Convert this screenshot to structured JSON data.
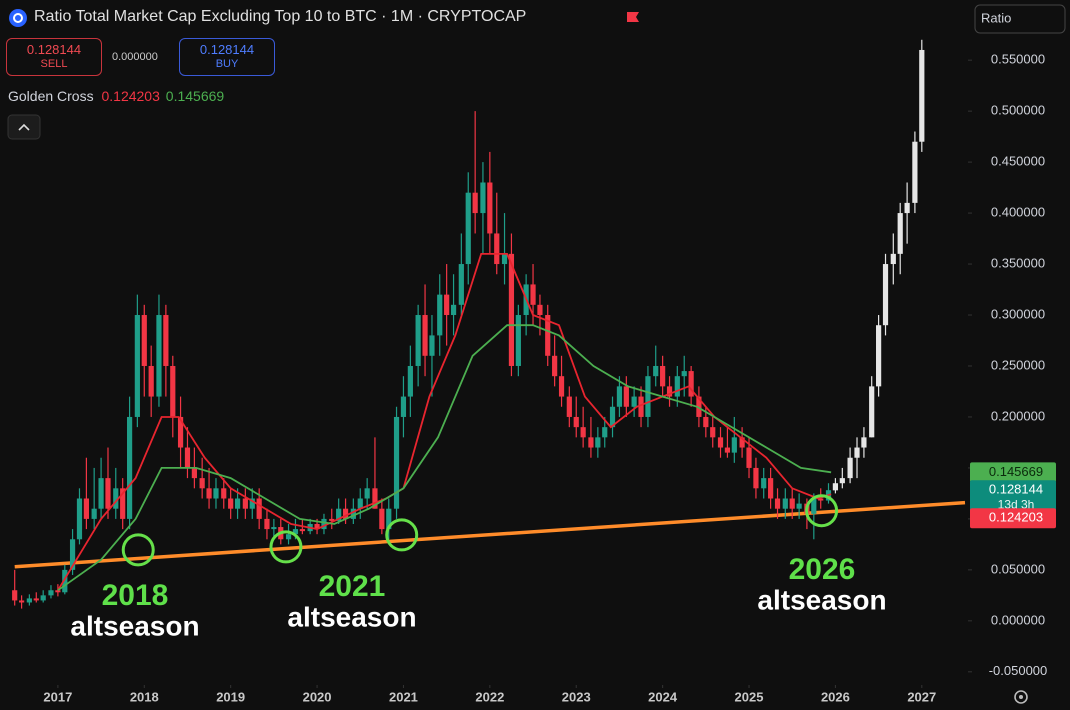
{
  "chart_data": {
    "type": "candlestick",
    "title": "Ratio Total Market Cap Excluding Top 10 to BTC · 1M · CRYPTOCAP",
    "sell": 0.128144,
    "sell_label": "SELL",
    "spread": {
      "value": 0,
      "label": "0.000000"
    },
    "buy": 0.128144,
    "buy_label": "BUY",
    "scale_label": "Ratio",
    "indicator": {
      "name": "Golden Cross",
      "fast": 0.124203,
      "slow": 0.145669
    },
    "price_badge": {
      "value": 0.128144,
      "countdown": "13d 3h"
    },
    "up_color": "#1f9e89",
    "down_color": "#f23645",
    "xlim": [
      2016.33,
      2027.5
    ],
    "xticks": [
      2017,
      2018,
      2019,
      2020,
      2021,
      2022,
      2023,
      2024,
      2025,
      2026,
      2027
    ],
    "ylim": [
      -0.06,
      0.61
    ],
    "yticks": [
      {
        "value": -0.05,
        "label": "-0.050000"
      },
      {
        "value": 0,
        "label": "0.000000"
      },
      {
        "value": 0.05,
        "label": "0.050000"
      },
      {
        "value": 0.1,
        "label": "0.100000"
      },
      {
        "value": 0.15,
        "label": "0.150000"
      },
      {
        "value": 0.2,
        "label": "0.200000"
      },
      {
        "value": 0.25,
        "label": "0.250000"
      },
      {
        "value": 0.3,
        "label": "0.300000"
      },
      {
        "value": 0.35,
        "label": "0.350000"
      },
      {
        "value": 0.4,
        "label": "0.400000"
      },
      {
        "value": 0.45,
        "label": "0.450000"
      },
      {
        "value": 0.5,
        "label": "0.500000"
      },
      {
        "value": 0.55,
        "label": "0.550000"
      }
    ],
    "candles": [
      [
        2016.5,
        0.03,
        0.05,
        0.015,
        0.02
      ],
      [
        2016.58,
        0.02,
        0.025,
        0.012,
        0.018
      ],
      [
        2016.67,
        0.018,
        0.026,
        0.015,
        0.022
      ],
      [
        2016.75,
        0.022,
        0.028,
        0.018,
        0.02
      ],
      [
        2016.83,
        0.02,
        0.03,
        0.018,
        0.025
      ],
      [
        2016.92,
        0.025,
        0.035,
        0.022,
        0.03
      ],
      [
        2017.0,
        0.03,
        0.036,
        0.024,
        0.028
      ],
      [
        2017.08,
        0.028,
        0.055,
        0.026,
        0.05
      ],
      [
        2017.17,
        0.05,
        0.09,
        0.045,
        0.08
      ],
      [
        2017.25,
        0.08,
        0.13,
        0.075,
        0.12
      ],
      [
        2017.33,
        0.12,
        0.16,
        0.09,
        0.1
      ],
      [
        2017.42,
        0.1,
        0.15,
        0.09,
        0.11
      ],
      [
        2017.5,
        0.11,
        0.16,
        0.1,
        0.14
      ],
      [
        2017.58,
        0.14,
        0.17,
        0.1,
        0.11
      ],
      [
        2017.67,
        0.11,
        0.15,
        0.1,
        0.13
      ],
      [
        2017.75,
        0.13,
        0.14,
        0.09,
        0.1
      ],
      [
        2017.83,
        0.1,
        0.22,
        0.09,
        0.2
      ],
      [
        2017.92,
        0.2,
        0.32,
        0.19,
        0.3
      ],
      [
        2018.0,
        0.3,
        0.31,
        0.22,
        0.25
      ],
      [
        2018.08,
        0.25,
        0.27,
        0.2,
        0.22
      ],
      [
        2018.17,
        0.22,
        0.32,
        0.21,
        0.3
      ],
      [
        2018.25,
        0.3,
        0.31,
        0.22,
        0.25
      ],
      [
        2018.33,
        0.25,
        0.26,
        0.18,
        0.2
      ],
      [
        2018.42,
        0.2,
        0.22,
        0.15,
        0.17
      ],
      [
        2018.5,
        0.17,
        0.19,
        0.14,
        0.15
      ],
      [
        2018.58,
        0.15,
        0.17,
        0.13,
        0.14
      ],
      [
        2018.67,
        0.14,
        0.16,
        0.12,
        0.13
      ],
      [
        2018.75,
        0.13,
        0.15,
        0.11,
        0.12
      ],
      [
        2018.83,
        0.12,
        0.14,
        0.11,
        0.13
      ],
      [
        2018.92,
        0.13,
        0.14,
        0.11,
        0.12
      ],
      [
        2019.0,
        0.12,
        0.13,
        0.1,
        0.11
      ],
      [
        2019.08,
        0.11,
        0.13,
        0.1,
        0.12
      ],
      [
        2019.17,
        0.12,
        0.13,
        0.1,
        0.11
      ],
      [
        2019.25,
        0.11,
        0.13,
        0.1,
        0.12
      ],
      [
        2019.33,
        0.12,
        0.13,
        0.09,
        0.1
      ],
      [
        2019.42,
        0.1,
        0.11,
        0.08,
        0.09
      ],
      [
        2019.5,
        0.09,
        0.1,
        0.08,
        0.092
      ],
      [
        2019.58,
        0.092,
        0.1,
        0.075,
        0.08
      ],
      [
        2019.67,
        0.08,
        0.095,
        0.075,
        0.085
      ],
      [
        2019.75,
        0.085,
        0.1,
        0.08,
        0.09
      ],
      [
        2019.83,
        0.09,
        0.1,
        0.085,
        0.088
      ],
      [
        2019.92,
        0.088,
        0.1,
        0.085,
        0.095
      ],
      [
        2020.0,
        0.095,
        0.1,
        0.085,
        0.09
      ],
      [
        2020.08,
        0.09,
        0.105,
        0.085,
        0.1
      ],
      [
        2020.17,
        0.1,
        0.11,
        0.09,
        0.098
      ],
      [
        2020.25,
        0.098,
        0.12,
        0.095,
        0.11
      ],
      [
        2020.33,
        0.11,
        0.12,
        0.095,
        0.1
      ],
      [
        2020.42,
        0.1,
        0.12,
        0.095,
        0.11
      ],
      [
        2020.5,
        0.11,
        0.13,
        0.1,
        0.12
      ],
      [
        2020.58,
        0.12,
        0.14,
        0.11,
        0.13
      ],
      [
        2020.67,
        0.13,
        0.18,
        0.11,
        0.11
      ],
      [
        2020.75,
        0.11,
        0.12,
        0.085,
        0.09
      ],
      [
        2020.83,
        0.09,
        0.12,
        0.08,
        0.11
      ],
      [
        2020.92,
        0.11,
        0.21,
        0.1,
        0.2
      ],
      [
        2021.0,
        0.2,
        0.24,
        0.18,
        0.22
      ],
      [
        2021.08,
        0.22,
        0.27,
        0.2,
        0.25
      ],
      [
        2021.17,
        0.25,
        0.31,
        0.23,
        0.3
      ],
      [
        2021.25,
        0.3,
        0.33,
        0.24,
        0.26
      ],
      [
        2021.33,
        0.26,
        0.3,
        0.22,
        0.28
      ],
      [
        2021.42,
        0.28,
        0.34,
        0.26,
        0.32
      ],
      [
        2021.5,
        0.32,
        0.35,
        0.27,
        0.3
      ],
      [
        2021.58,
        0.3,
        0.34,
        0.28,
        0.31
      ],
      [
        2021.67,
        0.31,
        0.38,
        0.3,
        0.35
      ],
      [
        2021.75,
        0.35,
        0.44,
        0.33,
        0.42
      ],
      [
        2021.83,
        0.42,
        0.5,
        0.38,
        0.4
      ],
      [
        2021.92,
        0.4,
        0.45,
        0.36,
        0.43
      ],
      [
        2022.0,
        0.43,
        0.46,
        0.36,
        0.38
      ],
      [
        2022.08,
        0.38,
        0.42,
        0.34,
        0.35
      ],
      [
        2022.17,
        0.35,
        0.4,
        0.33,
        0.36
      ],
      [
        2022.25,
        0.36,
        0.38,
        0.24,
        0.25
      ],
      [
        2022.33,
        0.25,
        0.31,
        0.24,
        0.3
      ],
      [
        2022.42,
        0.3,
        0.34,
        0.28,
        0.33
      ],
      [
        2022.5,
        0.33,
        0.35,
        0.29,
        0.31
      ],
      [
        2022.58,
        0.31,
        0.32,
        0.28,
        0.3
      ],
      [
        2022.67,
        0.3,
        0.31,
        0.25,
        0.26
      ],
      [
        2022.75,
        0.26,
        0.28,
        0.23,
        0.24
      ],
      [
        2022.83,
        0.24,
        0.26,
        0.21,
        0.22
      ],
      [
        2022.92,
        0.22,
        0.23,
        0.19,
        0.2
      ],
      [
        2023.0,
        0.2,
        0.22,
        0.18,
        0.19
      ],
      [
        2023.08,
        0.19,
        0.21,
        0.17,
        0.18
      ],
      [
        2023.17,
        0.18,
        0.2,
        0.16,
        0.17
      ],
      [
        2023.25,
        0.17,
        0.19,
        0.16,
        0.18
      ],
      [
        2023.33,
        0.18,
        0.2,
        0.17,
        0.19
      ],
      [
        2023.42,
        0.19,
        0.22,
        0.18,
        0.21
      ],
      [
        2023.5,
        0.21,
        0.24,
        0.2,
        0.23
      ],
      [
        2023.58,
        0.23,
        0.24,
        0.2,
        0.21
      ],
      [
        2023.67,
        0.21,
        0.23,
        0.2,
        0.22
      ],
      [
        2023.75,
        0.22,
        0.23,
        0.19,
        0.2
      ],
      [
        2023.83,
        0.2,
        0.25,
        0.19,
        0.24
      ],
      [
        2023.92,
        0.24,
        0.27,
        0.23,
        0.25
      ],
      [
        2024.0,
        0.25,
        0.26,
        0.22,
        0.23
      ],
      [
        2024.08,
        0.23,
        0.24,
        0.21,
        0.22
      ],
      [
        2024.17,
        0.22,
        0.25,
        0.21,
        0.24
      ],
      [
        2024.25,
        0.24,
        0.26,
        0.22,
        0.245
      ],
      [
        2024.33,
        0.245,
        0.25,
        0.21,
        0.22
      ],
      [
        2024.42,
        0.22,
        0.23,
        0.19,
        0.2
      ],
      [
        2024.5,
        0.2,
        0.21,
        0.18,
        0.19
      ],
      [
        2024.58,
        0.19,
        0.2,
        0.17,
        0.18
      ],
      [
        2024.67,
        0.18,
        0.19,
        0.16,
        0.17
      ],
      [
        2024.75,
        0.17,
        0.19,
        0.16,
        0.165
      ],
      [
        2024.83,
        0.165,
        0.2,
        0.155,
        0.18
      ],
      [
        2024.92,
        0.18,
        0.19,
        0.16,
        0.17
      ],
      [
        2025.0,
        0.17,
        0.18,
        0.14,
        0.15
      ],
      [
        2025.08,
        0.15,
        0.16,
        0.12,
        0.13
      ],
      [
        2025.17,
        0.13,
        0.15,
        0.12,
        0.14
      ],
      [
        2025.25,
        0.14,
        0.15,
        0.11,
        0.12
      ],
      [
        2025.33,
        0.12,
        0.13,
        0.1,
        0.11
      ],
      [
        2025.42,
        0.11,
        0.13,
        0.1,
        0.12
      ],
      [
        2025.5,
        0.12,
        0.13,
        0.1,
        0.11
      ],
      [
        2025.58,
        0.11,
        0.125,
        0.1,
        0.115
      ],
      [
        2025.67,
        0.115,
        0.12,
        0.09,
        0.105
      ],
      [
        2025.75,
        0.105,
        0.125,
        0.08,
        0.12
      ],
      [
        2025.83,
        0.12,
        0.13,
        0.11,
        0.118
      ],
      [
        2025.92,
        0.118,
        0.135,
        0.115,
        0.128144
      ]
    ],
    "projection": {
      "color": "#e6e6e6",
      "candles": [
        [
          2026.0,
          0.128,
          0.14,
          0.125,
          0.135
        ],
        [
          2026.08,
          0.135,
          0.15,
          0.13,
          0.14
        ],
        [
          2026.17,
          0.14,
          0.17,
          0.135,
          0.16
        ],
        [
          2026.25,
          0.16,
          0.18,
          0.14,
          0.17
        ],
        [
          2026.33,
          0.17,
          0.19,
          0.16,
          0.18
        ],
        [
          2026.42,
          0.18,
          0.24,
          0.18,
          0.23
        ],
        [
          2026.5,
          0.23,
          0.3,
          0.22,
          0.29
        ],
        [
          2026.58,
          0.29,
          0.36,
          0.28,
          0.35
        ],
        [
          2026.67,
          0.35,
          0.38,
          0.33,
          0.36
        ],
        [
          2026.75,
          0.36,
          0.41,
          0.34,
          0.4
        ],
        [
          2026.83,
          0.4,
          0.43,
          0.37,
          0.41
        ],
        [
          2026.92,
          0.41,
          0.48,
          0.4,
          0.47
        ],
        [
          2027.0,
          0.47,
          0.57,
          0.46,
          0.56
        ]
      ]
    },
    "lines": [
      {
        "color": "#e8252f",
        "x": [
          2017.0,
          2017.5,
          2017.9,
          2018.2,
          2018.4,
          2018.7,
          2019.0,
          2019.3,
          2019.7,
          2020.0,
          2020.5,
          2020.8,
          2021.0,
          2021.3,
          2021.6,
          2021.9,
          2022.2,
          2022.5,
          2022.8,
          2023.1,
          2023.4,
          2023.7,
          2024.0,
          2024.3,
          2024.6,
          2024.9,
          2025.2,
          2025.5,
          2025.8,
          2025.95
        ],
        "values": [
          0.03,
          0.1,
          0.14,
          0.2,
          0.2,
          0.16,
          0.13,
          0.115,
          0.095,
          0.09,
          0.11,
          0.12,
          0.13,
          0.22,
          0.28,
          0.36,
          0.36,
          0.3,
          0.29,
          0.22,
          0.19,
          0.21,
          0.22,
          0.23,
          0.2,
          0.18,
          0.16,
          0.13,
          0.12,
          0.124203
        ]
      },
      {
        "color": "#4caf50",
        "x": [
          2017.0,
          2017.5,
          2017.9,
          2018.2,
          2018.6,
          2019.0,
          2019.4,
          2019.8,
          2020.2,
          2020.6,
          2021.0,
          2021.4,
          2021.8,
          2022.2,
          2022.5,
          2022.8,
          2023.2,
          2023.6,
          2024.0,
          2024.4,
          2024.8,
          2025.2,
          2025.6,
          2025.95
        ],
        "values": [
          0.03,
          0.06,
          0.1,
          0.15,
          0.15,
          0.14,
          0.12,
          0.1,
          0.095,
          0.11,
          0.13,
          0.18,
          0.26,
          0.29,
          0.29,
          0.28,
          0.25,
          0.23,
          0.22,
          0.21,
          0.19,
          0.17,
          0.15,
          0.145669
        ]
      }
    ],
    "trendline": {
      "color": "#ff8c2a",
      "x": [
        2016.5,
        2027.5
      ],
      "values": [
        0.053,
        0.116
      ]
    },
    "highlights": {
      "color": "#66e04a",
      "x": [
        2017.93,
        2019.64,
        2020.98,
        2025.84
      ],
      "values": [
        0.0696,
        0.0725,
        0.0843,
        0.108
      ]
    },
    "annotations": [
      {
        "year": "2018",
        "text": "altseason"
      },
      {
        "year": "2021",
        "text": "altseason"
      },
      {
        "year": "2026",
        "text": "altseason"
      }
    ]
  }
}
